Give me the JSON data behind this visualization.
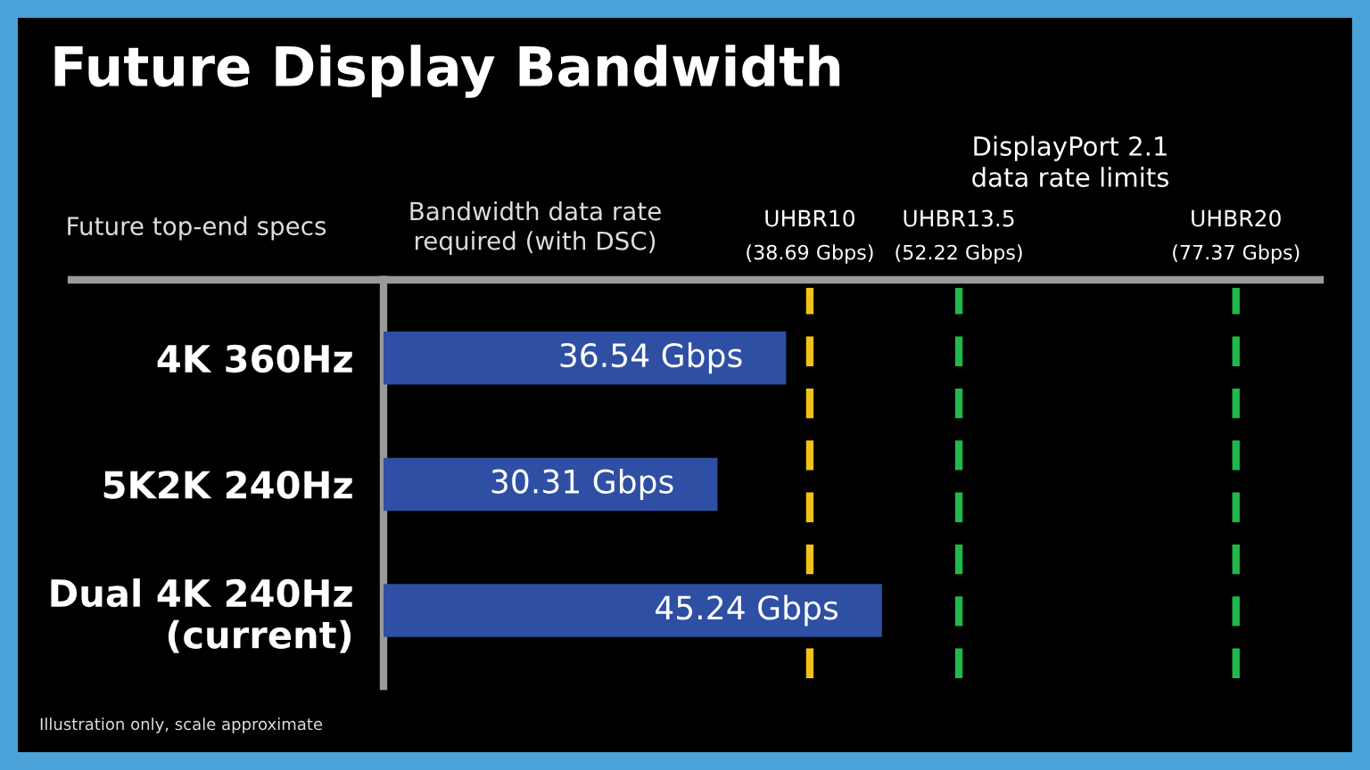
{
  "chart_data": {
    "type": "bar",
    "orientation": "horizontal",
    "title": "Future Display Bandwidth",
    "categories": [
      "4K 360Hz",
      "5K2K 240Hz",
      "Dual 4K 240Hz\n(current)"
    ],
    "values": [
      36.54,
      30.31,
      45.24
    ],
    "value_labels": [
      "36.54 Gbps",
      "30.31 Gbps",
      "45.24 Gbps"
    ],
    "color": "#2e4fa3",
    "xlim": [
      0,
      85
    ],
    "tick_labels": "y",
    "grid": false,
    "legend": false,
    "ref_lines": [
      {
        "axis": "x",
        "value": 38.69,
        "label": "UHBR10\n(38.69 Gbps)",
        "color": "#f2c21b",
        "line_style": "dashed"
      },
      {
        "axis": "x",
        "value": 52.22,
        "label": "UHBR13.5\n(52.22 Gbps)",
        "color": "#1fb84a",
        "line_style": "dashed"
      },
      {
        "axis": "x",
        "value": 77.37,
        "label": "UHBR20\n(77.37 Gbps)",
        "color": "#1fb84a",
        "line_style": "dashed"
      }
    ],
    "annotations": [
      "Future top-end specs",
      "Bandwidth data rate\nrequired (with DSC)",
      "DisplayPort 2.1\ndata rate limits",
      "Illustration only, scale approximate"
    ]
  }
}
